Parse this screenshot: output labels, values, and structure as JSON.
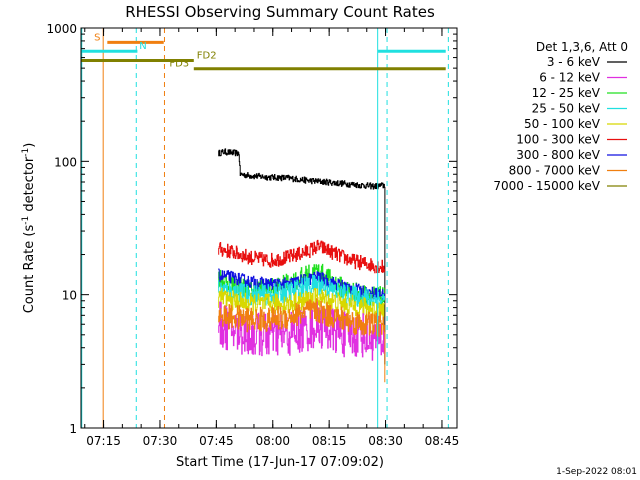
{
  "chart_data": {
    "type": "line",
    "title": "RHESSI Observing Summary Count Rates",
    "xlabel": "Start Time (17-Jun-17 07:09:02)",
    "ylabel_main": "Count Rate (s",
    "ylabel_sup1": "-1",
    "ylabel_mid": " detector",
    "ylabel_sup2": "-1",
    "ylabel_end": ")",
    "footer": "1-Sep-2022 08:01",
    "x_range_min": [
      0,
      100
    ],
    "xticks": [
      {
        "label": "07:15",
        "value": 6
      },
      {
        "label": "07:30",
        "value": 21
      },
      {
        "label": "07:45",
        "value": 36
      },
      {
        "label": "08:00",
        "value": 51
      },
      {
        "label": "08:15",
        "value": 66
      },
      {
        "label": "08:30",
        "value": 81
      },
      {
        "label": "08:45",
        "value": 96
      }
    ],
    "ylim": [
      1,
      1000
    ],
    "yticks": [
      {
        "label": "1",
        "value": 1
      },
      {
        "label": "10",
        "value": 10
      },
      {
        "label": "100",
        "value": 100
      },
      {
        "label": "1000",
        "value": 1000
      }
    ],
    "legend": {
      "header": "Det 1,3,6, Att 0",
      "entries": [
        {
          "label": "3 - 6 keV",
          "color": "#000000"
        },
        {
          "label": "6 - 12 keV",
          "color": "#e030e0"
        },
        {
          "label": "12 - 25 keV",
          "color": "#20e020"
        },
        {
          "label": "25 - 50 keV",
          "color": "#20e0e0"
        },
        {
          "label": "50 - 100 keV",
          "color": "#d8d800"
        },
        {
          "label": "100 - 300 keV",
          "color": "#e81010"
        },
        {
          "label": "300 - 800 keV",
          "color": "#1010e0"
        },
        {
          "label": "800 - 7000 keV",
          "color": "#f07f10"
        },
        {
          "label": "7000 - 15000 keV",
          "color": "#808000"
        }
      ]
    },
    "series": [
      {
        "name": "3 - 6 keV",
        "color": "#000000",
        "noise": 0.03,
        "points": [
          [
            36.5,
            115
          ],
          [
            38,
            118
          ],
          [
            40,
            116
          ],
          [
            42,
            115
          ],
          [
            42.3,
            80
          ],
          [
            45,
            78
          ],
          [
            50,
            76
          ],
          [
            55,
            75
          ],
          [
            60,
            72
          ],
          [
            65,
            70
          ],
          [
            70,
            68
          ],
          [
            75,
            66
          ],
          [
            78,
            65
          ],
          [
            80.7,
            66
          ]
        ],
        "end_drop": 3.0
      },
      {
        "name": "100 - 300 keV",
        "color": "#e81010",
        "noise": 0.07,
        "points": [
          [
            36.5,
            22
          ],
          [
            40,
            21
          ],
          [
            45,
            19
          ],
          [
            50,
            18
          ],
          [
            55,
            19
          ],
          [
            60,
            21
          ],
          [
            63,
            23
          ],
          [
            65,
            22
          ],
          [
            68,
            20
          ],
          [
            72,
            18
          ],
          [
            76,
            17
          ],
          [
            80.7,
            16
          ]
        ],
        "end_drop": null
      },
      {
        "name": "12 - 25 keV",
        "color": "#20e020",
        "noise": 0.1,
        "points": [
          [
            36.5,
            13
          ],
          [
            40,
            12
          ],
          [
            45,
            11
          ],
          [
            50,
            11
          ],
          [
            55,
            12
          ],
          [
            60,
            14
          ],
          [
            63,
            15
          ],
          [
            66,
            13
          ],
          [
            70,
            11
          ],
          [
            75,
            10
          ],
          [
            80.7,
            9.5
          ]
        ],
        "end_drop": null
      },
      {
        "name": "300 - 800 keV",
        "color": "#1010e0",
        "noise": 0.06,
        "points": [
          [
            36.5,
            14
          ],
          [
            40,
            13.5
          ],
          [
            45,
            12.5
          ],
          [
            50,
            12
          ],
          [
            55,
            12
          ],
          [
            60,
            13
          ],
          [
            63,
            13.5
          ],
          [
            66,
            12.5
          ],
          [
            70,
            11.5
          ],
          [
            75,
            10.5
          ],
          [
            80.7,
            10
          ]
        ],
        "end_drop": null
      },
      {
        "name": "25 - 50 keV",
        "color": "#20e0e0",
        "noise": 0.1,
        "points": [
          [
            36.5,
            11
          ],
          [
            40,
            10.5
          ],
          [
            45,
            10
          ],
          [
            50,
            10
          ],
          [
            55,
            10.5
          ],
          [
            60,
            11.5
          ],
          [
            63,
            12
          ],
          [
            66,
            11
          ],
          [
            70,
            10
          ],
          [
            75,
            9.5
          ],
          [
            80.7,
            9
          ]
        ],
        "end_drop": null
      },
      {
        "name": "50 - 100 keV",
        "color": "#d8d800",
        "noise": 0.1,
        "points": [
          [
            36.5,
            9.5
          ],
          [
            40,
            9
          ],
          [
            45,
            8.5
          ],
          [
            50,
            8.5
          ],
          [
            55,
            8.5
          ],
          [
            60,
            9
          ],
          [
            63,
            9.5
          ],
          [
            66,
            9
          ],
          [
            70,
            8.5
          ],
          [
            75,
            8
          ],
          [
            80.7,
            7.5
          ]
        ],
        "end_drop": null
      },
      {
        "name": "6 - 12 keV",
        "color": "#e030e0",
        "noise": 0.22,
        "points": [
          [
            36.5,
            6
          ],
          [
            40,
            5.5
          ],
          [
            45,
            5
          ],
          [
            50,
            5
          ],
          [
            55,
            5
          ],
          [
            60,
            5.5
          ],
          [
            63,
            6
          ],
          [
            66,
            5.5
          ],
          [
            70,
            5
          ],
          [
            75,
            5
          ],
          [
            80.7,
            4.5
          ]
        ],
        "end_drop": null
      },
      {
        "name": "800 - 7000 keV",
        "color": "#f07f10",
        "noise": 0.12,
        "points": [
          [
            36.5,
            7
          ],
          [
            40,
            6.8
          ],
          [
            45,
            6.5
          ],
          [
            50,
            6.5
          ],
          [
            55,
            6.8
          ],
          [
            60,
            7.5
          ],
          [
            63,
            7.5
          ],
          [
            66,
            7
          ],
          [
            70,
            6.5
          ],
          [
            75,
            6
          ],
          [
            80.7,
            6
          ]
        ],
        "end_drop": 2.2
      }
    ],
    "attenuator_bars": [
      {
        "label": "S",
        "label_color": "#f07f10",
        "color": "#f07f10",
        "x_start": 7,
        "x_end": 22,
        "y": 780,
        "label_x": 3.5
      },
      {
        "label": "N",
        "label_color": "#20e0e0",
        "color": "#20e0e0",
        "x_start": 0,
        "x_end": 15,
        "y": 670,
        "label_x": 15.5
      },
      {
        "label": "",
        "label_color": "#20e0e0",
        "color": "#20e0e0",
        "x_start": 79,
        "x_end": 97,
        "y": 670,
        "label_x": 79
      },
      {
        "label": "FD2",
        "label_color": "#808000",
        "color": "#808000",
        "x_start": 0,
        "x_end": 30,
        "y": 570,
        "label_x": 30.8
      },
      {
        "label": "FD3",
        "label_color": "#808000",
        "color": "#808000",
        "x_start": 30,
        "x_end": 97,
        "y": 495,
        "label_x": 23.5
      }
    ],
    "vertical_lines": [
      {
        "x": 5.9,
        "color": "#f07f10",
        "style": "solid"
      },
      {
        "x": 14.7,
        "color": "#20e0e0",
        "style": "dashed"
      },
      {
        "x": 22.2,
        "color": "#f07f10",
        "style": "dashed"
      },
      {
        "x": 0.2,
        "color": "#20e0e0",
        "style": "solid"
      },
      {
        "x": 78.9,
        "color": "#20e0e0",
        "style": "solid"
      },
      {
        "x": 81.4,
        "color": "#20e0e0",
        "style": "dashed"
      },
      {
        "x": 97.7,
        "color": "#20e0e0",
        "style": "dashed"
      }
    ]
  }
}
